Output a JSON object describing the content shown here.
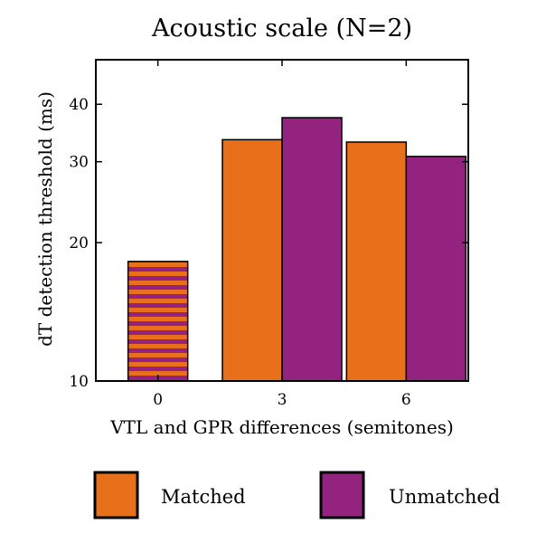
{
  "chart_data": {
    "type": "bar",
    "title": "Acoustic scale (N=2)",
    "xlabel": "VTL and GPR differences (semitones)",
    "ylabel": "dT detection threshold (ms)",
    "yscale": "log",
    "ylim": [
      10,
      50
    ],
    "yticks": [
      "10",
      "20",
      "30",
      "40"
    ],
    "categories": [
      "0",
      "3",
      "6"
    ],
    "series": [
      {
        "name": "Matched",
        "color": "#e8701a",
        "values": [
          18.2,
          33.5,
          33.1
        ]
      },
      {
        "name": "Unmatched",
        "color": "#93237f",
        "values": [
          null,
          37.4,
          30.8
        ]
      }
    ],
    "combined_category": {
      "category": "0",
      "value": 18.2,
      "pattern": "stripes"
    },
    "legend": "bottom",
    "grid": false
  }
}
